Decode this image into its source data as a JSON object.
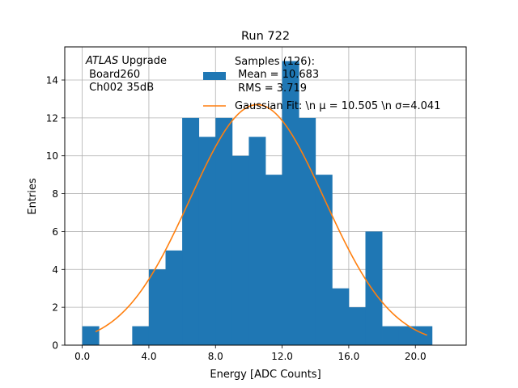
{
  "chart_data": {
    "type": "bar",
    "title": "Run 722",
    "xlabel": "Energy [ADC Counts]",
    "ylabel": "Entries",
    "xlim": [
      -1.05,
      23.05
    ],
    "ylim": [
      0,
      15.75
    ],
    "grid": true,
    "xticks": [
      0,
      4,
      8,
      12,
      16,
      20
    ],
    "xtick_labels": [
      "0.0",
      "4.0",
      "8.0",
      "12.0",
      "16.0",
      "20.0"
    ],
    "yticks": [
      0,
      2,
      4,
      6,
      8,
      10,
      12,
      14
    ],
    "ytick_labels": [
      "0",
      "2",
      "4",
      "6",
      "8",
      "10",
      "12",
      "14"
    ],
    "bin_edges": [
      0,
      1,
      2,
      3,
      4,
      5,
      6,
      7,
      8,
      9,
      10,
      11,
      12,
      13,
      14,
      15,
      16,
      17,
      18,
      19,
      20,
      21
    ],
    "counts": [
      1,
      0,
      0,
      1,
      4,
      5,
      12,
      11,
      12,
      10,
      11,
      9,
      15,
      12,
      9,
      3,
      2,
      6,
      1,
      1,
      1
    ],
    "series": [
      {
        "name": "Samples (126):\n Mean = 10.683\n RMS = 3.719",
        "kind": "histogram",
        "color": "#1f77b4"
      },
      {
        "name": "Gaussian Fit: \\n μ = 10.505 \\n σ=4.041",
        "kind": "line",
        "color": "#ff7f0e",
        "amplitude": 12.7,
        "mu": 10.505,
        "sigma": 4.041,
        "x_range": [
          0.8,
          20.7
        ]
      }
    ],
    "legend": {
      "placement": "top-center",
      "entries": [
        {
          "label_lines": [
            "Samples (126):",
            " Mean = 10.683",
            " RMS = 3.719"
          ],
          "type": "patch",
          "color": "#1f77b4"
        },
        {
          "label_lines": [
            "Gaussian Fit: \\n μ = 10.505 \\n σ=4.041"
          ],
          "type": "line",
          "color": "#ff7f0e"
        }
      ]
    },
    "annotation": {
      "placement": "top-left",
      "lines": [
        "ATLAS Upgrade",
        " Board260",
        " Ch002 35dB"
      ]
    }
  }
}
